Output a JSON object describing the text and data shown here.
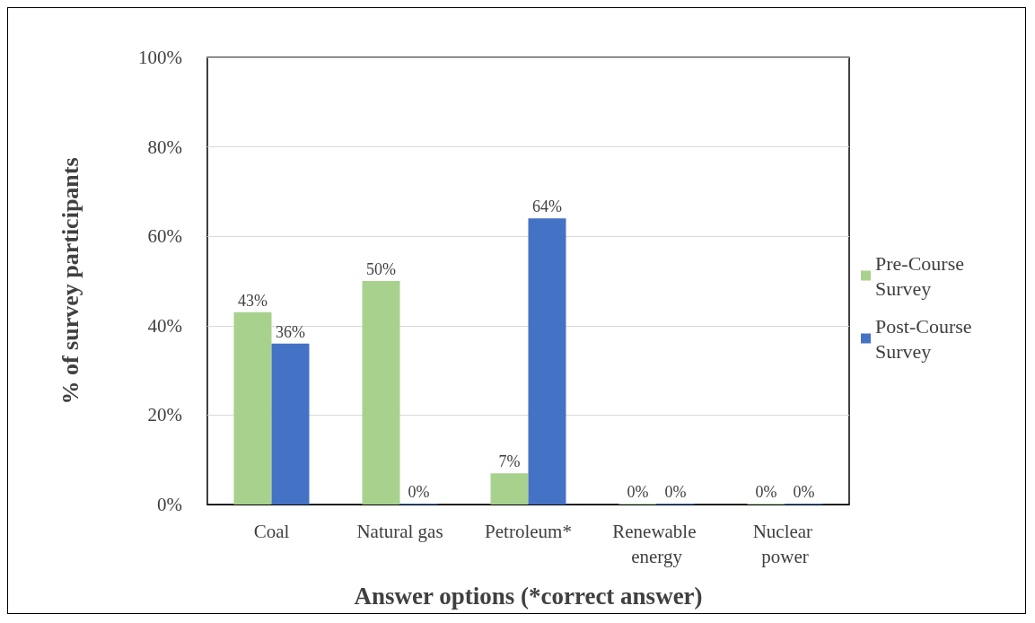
{
  "chart_data": {
    "type": "bar",
    "xlabel": "Answer options (*correct answer)",
    "ylabel": "% of survey participants",
    "categories": [
      "Coal",
      "Natural gas",
      "Petroleum*",
      "Renewable energy",
      "Nuclear power"
    ],
    "series": [
      {
        "name": "Pre-Course Survey",
        "color": "#a9d18e",
        "values": [
          43,
          50,
          7,
          0,
          0
        ],
        "value_labels": [
          "43%",
          "50%",
          "7%",
          "0%",
          "0%"
        ]
      },
      {
        "name": "Post-Course Survey",
        "color": "#4472c4",
        "values": [
          36,
          0,
          64,
          0,
          0
        ],
        "value_labels": [
          "36%",
          "0%",
          "64%",
          "0%",
          "0%"
        ]
      }
    ],
    "ylim": [
      0,
      100
    ],
    "yticks": [
      {
        "value": 0,
        "label": "0%"
      },
      {
        "value": 20,
        "label": "20%"
      },
      {
        "value": 40,
        "label": "40%"
      },
      {
        "value": 60,
        "label": "60%"
      },
      {
        "value": 80,
        "label": "80%"
      },
      {
        "value": 100,
        "label": "100%"
      }
    ],
    "grid": "y",
    "legend": "right"
  }
}
